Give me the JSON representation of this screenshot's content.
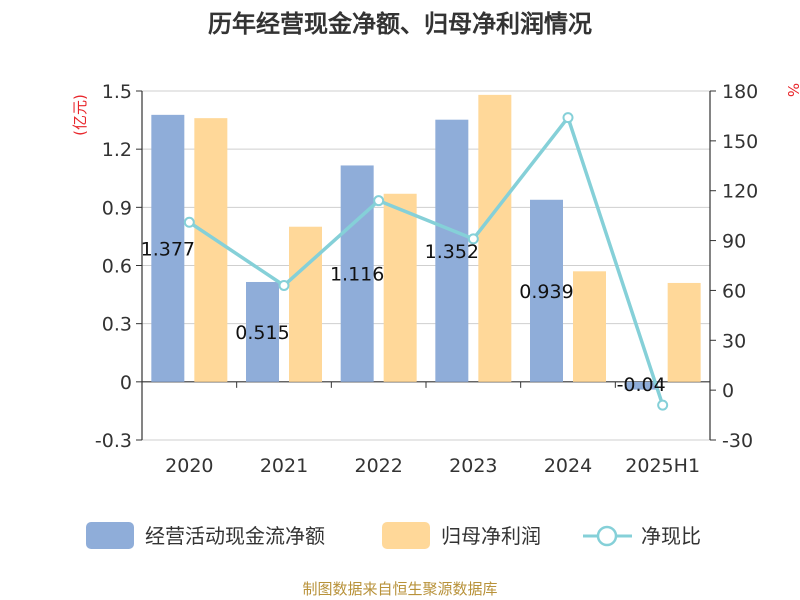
{
  "title": "历年经营现金净额、归母净利润情况",
  "source": "制图数据来自恒生聚源数据库",
  "colors": {
    "cash": "#8fadd9",
    "profit": "#ffd899",
    "ratio": "#85d0d8",
    "unit": "#e8262b",
    "source": "#b8923a"
  },
  "chart_data": {
    "type": "bar",
    "title": "历年经营现金净额、归母净利润情况",
    "categories": [
      "2020",
      "2021",
      "2022",
      "2023",
      "2024",
      "2025H1"
    ],
    "y_left": {
      "unit": "(亿元)",
      "ylim": [
        -0.3,
        1.5
      ],
      "ticks": [
        "1.5",
        "1.2",
        "0.9",
        "0.6",
        "0.3",
        "0",
        "-0.3"
      ]
    },
    "y_right": {
      "unit": "%",
      "ylim": [
        -30,
        180
      ],
      "ticks": [
        "180",
        "150",
        "120",
        "90",
        "60",
        "30",
        "0",
        "-30"
      ]
    },
    "series": [
      {
        "name": "经营活动现金流净额",
        "type": "bar",
        "axis": "left",
        "values": [
          1.377,
          0.515,
          1.116,
          1.352,
          0.939,
          -0.04
        ],
        "labels": [
          "1.377",
          "0.515",
          "1.116",
          "1.352",
          "0.939",
          "-0.04"
        ]
      },
      {
        "name": "归母净利润",
        "type": "bar",
        "axis": "left",
        "values": [
          1.36,
          0.8,
          0.97,
          1.48,
          0.57,
          0.51
        ]
      },
      {
        "name": "净现比",
        "type": "line",
        "axis": "right",
        "values": [
          101,
          63,
          114,
          91,
          164,
          -9
        ]
      }
    ],
    "grid": true,
    "legend": "bottom"
  }
}
